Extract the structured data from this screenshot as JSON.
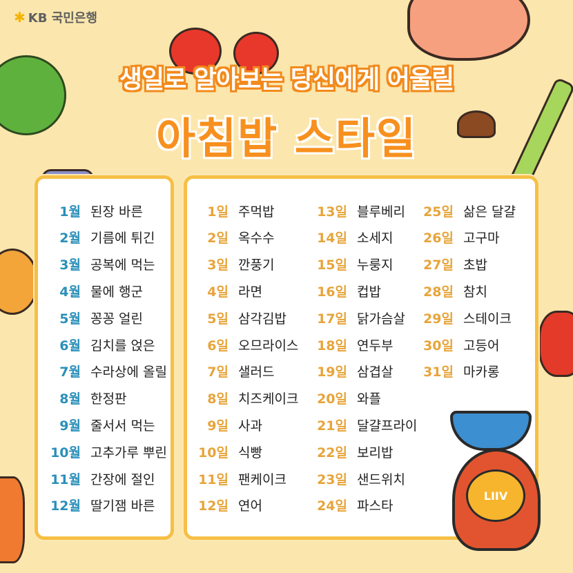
{
  "brand": {
    "logo_text": "KB 국민은행",
    "logo_icon": "kb-star-icon"
  },
  "title": {
    "line1": "생일로 알아보는 당신에게 어울릴",
    "line2": "아침밥 스타일"
  },
  "months": [
    {
      "num": "1월",
      "text": "된장 바른"
    },
    {
      "num": "2월",
      "text": "기름에 튀긴"
    },
    {
      "num": "3월",
      "text": "공복에 먹는"
    },
    {
      "num": "4월",
      "text": "물에 행군"
    },
    {
      "num": "5월",
      "text": "꽁꽁 얼린"
    },
    {
      "num": "6월",
      "text": "김치를 얹은"
    },
    {
      "num": "7월",
      "text": "수라상에 올릴"
    },
    {
      "num": "8월",
      "text": "한정판"
    },
    {
      "num": "9월",
      "text": "줄서서 먹는"
    },
    {
      "num": "10월",
      "text": "고추가루 뿌린"
    },
    {
      "num": "11월",
      "text": "간장에 절인"
    },
    {
      "num": "12월",
      "text": "딸기잼 바른"
    }
  ],
  "days": [
    {
      "num": "1일",
      "text": "주먹밥"
    },
    {
      "num": "2일",
      "text": "옥수수"
    },
    {
      "num": "3일",
      "text": "깐풍기"
    },
    {
      "num": "4일",
      "text": "라면"
    },
    {
      "num": "5일",
      "text": "삼각김밥"
    },
    {
      "num": "6일",
      "text": "오므라이스"
    },
    {
      "num": "7일",
      "text": "샐러드"
    },
    {
      "num": "8일",
      "text": "치즈케이크"
    },
    {
      "num": "9일",
      "text": "사과"
    },
    {
      "num": "10일",
      "text": "식빵"
    },
    {
      "num": "11일",
      "text": "팬케이크"
    },
    {
      "num": "12일",
      "text": "연어"
    },
    {
      "num": "13일",
      "text": "블루베리"
    },
    {
      "num": "14일",
      "text": "소세지"
    },
    {
      "num": "15일",
      "text": "누룽지"
    },
    {
      "num": "16일",
      "text": "컵밥"
    },
    {
      "num": "17일",
      "text": "닭가슴살"
    },
    {
      "num": "18일",
      "text": "연두부"
    },
    {
      "num": "19일",
      "text": "삼겹살"
    },
    {
      "num": "20일",
      "text": "와플"
    },
    {
      "num": "21일",
      "text": "달걀프라이"
    },
    {
      "num": "22일",
      "text": "보리밥"
    },
    {
      "num": "23일",
      "text": "샌드위치"
    },
    {
      "num": "24일",
      "text": "파스타"
    },
    {
      "num": "25일",
      "text": "삶은 달걀"
    },
    {
      "num": "26일",
      "text": "고구마"
    },
    {
      "num": "27일",
      "text": "초밥"
    },
    {
      "num": "28일",
      "text": "참치"
    },
    {
      "num": "29일",
      "text": "스테이크"
    },
    {
      "num": "30일",
      "text": "고등어"
    },
    {
      "num": "31일",
      "text": "마카롱"
    }
  ],
  "mascot": {
    "badge": "LIIV"
  },
  "colors": {
    "background": "#fbe6ad",
    "panel_border": "#f6bf45",
    "month_number": "#2a8fb9",
    "day_number": "#e7a43a",
    "title_orange": "#f7901e"
  }
}
